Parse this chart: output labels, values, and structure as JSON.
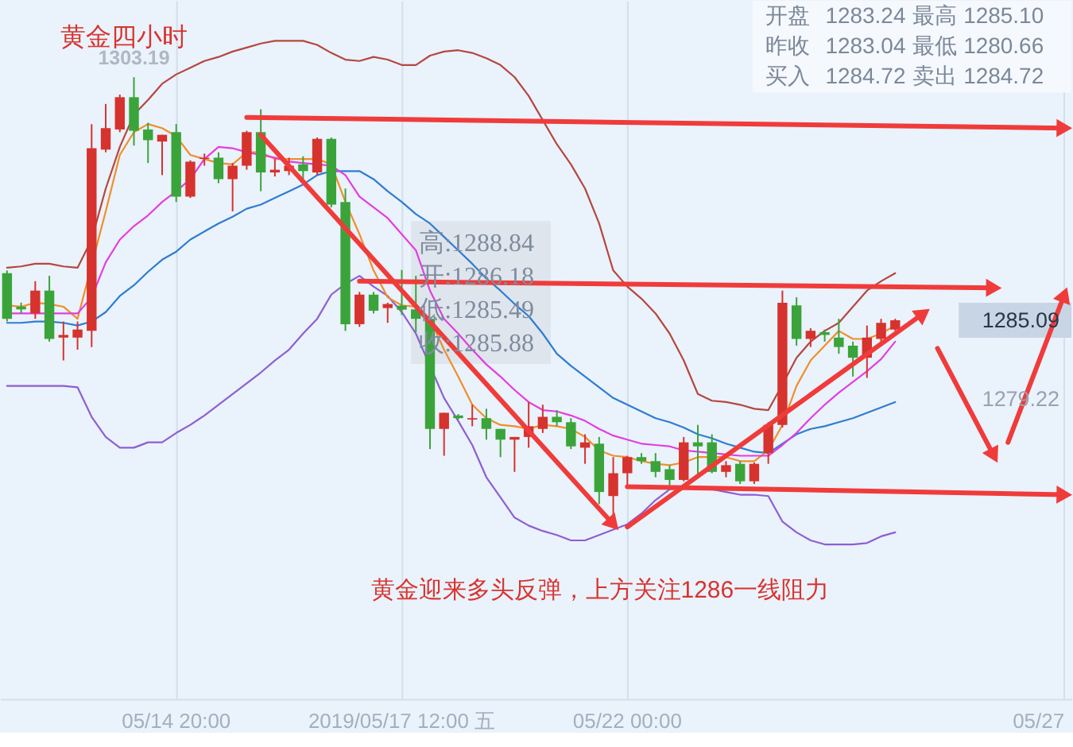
{
  "chart_data": {
    "type": "candlestick",
    "title": "黄金四小时",
    "categories": [
      null,
      null,
      null,
      null,
      null,
      null,
      null,
      null,
      null,
      null,
      null,
      null,
      "05/14 20:00",
      null,
      null,
      null,
      null,
      null,
      null,
      null,
      null,
      null,
      null,
      null,
      null,
      null,
      null,
      null,
      "2019/05/17 12:00 五",
      null,
      null,
      null,
      null,
      null,
      null,
      null,
      null,
      null,
      null,
      null,
      null,
      null,
      null,
      null,
      "05/22 00:00",
      null,
      null,
      null,
      null,
      null,
      null,
      null,
      null,
      null,
      null,
      null,
      null,
      null,
      null,
      null,
      null,
      null,
      null,
      null,
      null,
      null,
      null,
      null,
      null,
      null,
      null,
      null,
      null,
      null,
      null,
      "05/27"
    ],
    "ohlc": [
      [
        1288.6,
        1288.8,
        1285.0,
        1285.2
      ],
      [
        1286.1,
        1286.4,
        1285.6,
        1285.9
      ],
      [
        1285.6,
        1288.0,
        1285.2,
        1287.3
      ],
      [
        1287.3,
        1288.4,
        1283.5,
        1283.7
      ],
      [
        1283.8,
        1285.0,
        1282.1,
        1284.0
      ],
      [
        1283.8,
        1285.0,
        1282.9,
        1284.4
      ],
      [
        1284.3,
        1299.7,
        1283.1,
        1297.9
      ],
      [
        1297.8,
        1301.2,
        1297.6,
        1299.4
      ],
      [
        1299.3,
        1301.9,
        1299.1,
        1301.7
      ],
      [
        1301.7,
        1303.19,
        1298.1,
        1299.2
      ],
      [
        1299.3,
        1299.8,
        1296.8,
        1298.5
      ],
      [
        1298.4,
        1298.9,
        1295.9,
        1298.9
      ],
      [
        1299.1,
        1299.7,
        1293.9,
        1294.3
      ],
      [
        1294.3,
        1297.0,
        1294.2,
        1296.9
      ],
      [
        1297.1,
        1297.5,
        1296.6,
        1297.2
      ],
      [
        1297.2,
        1297.6,
        1295.3,
        1295.6
      ],
      [
        1295.6,
        1296.8,
        1293.2,
        1296.6
      ],
      [
        1296.6,
        1299.2,
        1296.3,
        1299.1
      ],
      [
        1299.1,
        1300.8,
        1294.7,
        1296.1
      ],
      [
        1296.1,
        1297.1,
        1295.8,
        1296.3
      ],
      [
        1296.2,
        1297.2,
        1295.9,
        1296.6
      ],
      [
        1296.7,
        1297.3,
        1295.6,
        1296.2
      ],
      [
        1296.1,
        1298.7,
        1295.9,
        1298.6
      ],
      [
        1298.6,
        1298.7,
        1293.5,
        1293.7
      ],
      [
        1293.9,
        1294.9,
        1284.3,
        1284.8
      ],
      [
        1284.8,
        1287.2,
        1284.6,
        1287.0
      ],
      [
        1287.0,
        1287.2,
        1285.6,
        1285.8
      ],
      [
        1286.0,
        1286.4,
        1284.9,
        1286.3
      ],
      [
        1286.18,
        1288.84,
        1285.49,
        1285.88
      ],
      [
        1285.9,
        1288.4,
        1284.2,
        1285.2
      ],
      [
        1285.2,
        1285.3,
        1275.5,
        1277.0
      ],
      [
        1277.0,
        1278.2,
        1275.0,
        1278.2
      ],
      [
        1278.0,
        1278.1,
        1277.7,
        1277.8
      ],
      [
        1277.7,
        1278.8,
        1277.2,
        1277.8
      ],
      [
        1277.8,
        1278.5,
        1276.2,
        1277.0
      ],
      [
        1277.0,
        1277.0,
        1274.9,
        1276.2
      ],
      [
        1276.2,
        1276.4,
        1273.8,
        1276.4
      ],
      [
        1276.4,
        1279.0,
        1275.6,
        1277.2
      ],
      [
        1277.0,
        1278.8,
        1276.7,
        1277.9
      ],
      [
        1277.9,
        1278.4,
        1277.2,
        1277.5
      ],
      [
        1277.5,
        1277.8,
        1275.5,
        1275.7
      ],
      [
        1275.6,
        1276.6,
        1274.4,
        1276.0
      ],
      [
        1275.9,
        1276.4,
        1271.4,
        1272.3
      ],
      [
        1272.0,
        1274.9,
        1269.7,
        1273.7
      ],
      [
        1273.7,
        1275.0,
        1272.6,
        1274.9
      ],
      [
        1274.9,
        1275.2,
        1274.4,
        1274.6
      ],
      [
        1274.6,
        1275.2,
        1273.4,
        1273.8
      ],
      [
        1274.0,
        1274.3,
        1272.6,
        1273.2
      ],
      [
        1273.2,
        1276.4,
        1273.1,
        1276.0
      ],
      [
        1276.0,
        1277.3,
        1273.4,
        1275.7
      ],
      [
        1276.0,
        1276.6,
        1273.7,
        1273.8
      ],
      [
        1273.8,
        1274.6,
        1273.4,
        1274.3
      ],
      [
        1274.4,
        1274.6,
        1272.9,
        1273.1
      ],
      [
        1273.1,
        1274.5,
        1272.9,
        1274.4
      ],
      [
        1275.2,
        1277.5,
        1274.4,
        1277.3
      ],
      [
        1277.3,
        1287.3,
        1277.1,
        1286.4
      ],
      [
        1286.2,
        1286.8,
        1283.2,
        1283.7
      ],
      [
        1283.7,
        1284.5,
        1283.1,
        1284.3
      ],
      [
        1284.2,
        1284.4,
        1283.5,
        1284.0
      ],
      [
        1283.8,
        1285.2,
        1282.6,
        1283.1
      ],
      [
        1283.2,
        1283.5,
        1280.9,
        1282.3
      ],
      [
        1282.3,
        1284.7,
        1280.8,
        1283.8
      ],
      [
        1283.7,
        1285.2,
        1283.5,
        1284.9
      ],
      [
        1284.4,
        1285.2,
        1284.3,
        1285.09
      ],
      null,
      null,
      null,
      null,
      null,
      null,
      null,
      null,
      null,
      null,
      null,
      null
    ],
    "colors": [
      "#3aa43a",
      "#3aa43a",
      "#d6322e",
      "#3aa43a",
      "#d6322e",
      "#d6322e",
      "#d6322e",
      "#d6322e",
      "#d6322e",
      "#3aa43a",
      "#3aa43a",
      "#d6322e",
      "#3aa43a",
      "#d6322e",
      "#d6322e",
      "#3aa43a",
      "#d6322e",
      "#d6322e",
      "#3aa43a",
      "#d6322e",
      "#d6322e",
      "#3aa43a",
      "#d6322e",
      "#3aa43a",
      "#3aa43a",
      "#d6322e",
      "#3aa43a",
      "#d6322e",
      "#3aa43a",
      "#3aa43a",
      "#3aa43a",
      "#d6322e",
      "#3aa43a",
      "#d6322e",
      "#3aa43a",
      "#3aa43a",
      "#d6322e",
      "#d6322e",
      "#d6322e",
      "#3aa43a",
      "#3aa43a",
      "#d6322e",
      "#3aa43a",
      "#d6322e",
      "#d6322e",
      "#3aa43a",
      "#3aa43a",
      "#3aa43a",
      "#d6322e",
      "#3aa43a",
      "#3aa43a",
      "#d6322e",
      "#3aa43a",
      "#d6322e",
      "#d6322e",
      "#d6322e",
      "#3aa43a",
      "#d6322e",
      "#3aa43a",
      "#3aa43a",
      "#3aa43a",
      "#d6322e",
      "#d6322e",
      "#d6322e",
      null,
      null,
      null,
      null,
      null,
      null,
      null,
      null,
      null,
      null,
      null,
      null
    ],
    "series": [
      {
        "type": "line",
        "color": "#b5473f",
        "values": [
          1289.0,
          1289.1,
          1289.3,
          1289.3,
          1289.1,
          1289.0,
          1291.1,
          1294.9,
          1298.0,
          1300.4,
          1301.5,
          1302.7,
          1303.4,
          1303.9,
          1304.4,
          1304.7,
          1305.1,
          1305.4,
          1305.7,
          1305.9,
          1305.9,
          1305.9,
          1305.6,
          1305.0,
          1304.5,
          1304.4,
          1304.7,
          1304.5,
          1304.1,
          1304.1,
          1304.8,
          1305.1,
          1305.2,
          1305.0,
          1304.6,
          1304.1,
          1303.2,
          1301.8,
          1300.0,
          1298.2,
          1296.7,
          1294.9,
          1292.3,
          1288.8,
          1287.6,
          1286.7,
          1285.6,
          1284.1,
          1282.1,
          1279.6,
          1279.1,
          1279.0,
          1278.8,
          1278.5,
          1278.4,
          1280.3,
          1282.3,
          1283.5,
          1284.3,
          1284.9,
          1286.1,
          1287.3,
          1288.0,
          1288.6,
          null,
          null,
          null,
          null,
          null,
          null,
          null,
          null,
          null,
          null,
          null,
          null
        ]
      },
      {
        "type": "line",
        "color": "#8d5fd3",
        "values": [
          1280.2,
          1280.2,
          1280.2,
          1280.2,
          1280.2,
          1280.1,
          1277.9,
          1276.4,
          1275.6,
          1275.6,
          1276.0,
          1276.0,
          1276.7,
          1277.3,
          1278.0,
          1278.8,
          1279.6,
          1280.4,
          1281.2,
          1282.1,
          1282.9,
          1284.1,
          1285.2,
          1287.0,
          1287.8,
          1288.4,
          1287.6,
          1286.9,
          1285.7,
          1284.1,
          null,
          1279.3,
          1277.6,
          1275.8,
          1273.4,
          1271.9,
          1270.4,
          1269.8,
          1269.4,
          1269.1,
          1268.7,
          1268.7,
          1269.1,
          1269.5,
          1269.9,
          1270.7,
          1271.7,
          1272.5,
          1272.6,
          1272.6,
          1272.5,
          1272.3,
          1272.1,
          1272.1,
          1272.0,
          1270.1,
          1269.3,
          1268.7,
          1268.4,
          1268.4,
          1268.4,
          1268.5,
          1269.0,
          1269.3,
          null,
          null,
          null,
          null,
          null,
          null,
          null,
          null,
          null,
          null,
          null,
          null
        ]
      },
      {
        "type": "line",
        "color": "#2e7dd1",
        "values": [
          1284.9,
          1284.9,
          1285.0,
          1285.0,
          1284.9,
          1284.7,
          1285.0,
          1285.7,
          1286.9,
          1287.7,
          1288.7,
          1289.6,
          1290.2,
          1291.1,
          1291.7,
          1292.3,
          1292.8,
          1293.4,
          1293.7,
          1294.2,
          1294.7,
          1295.2,
          1295.9,
          1296.2,
          1296.2,
          1296.2,
          1295.6,
          1294.7,
          1293.9,
          1293.0,
          1292.3,
          1291.3,
          1290.3,
          1289.3,
          1288.2,
          1287.3,
          1286.3,
          1285.4,
          1284.1,
          1282.6,
          1281.7,
          1280.9,
          1280.1,
          1279.3,
          1278.8,
          1278.3,
          1277.8,
          1277.5,
          1277.1,
          1276.6,
          1276.3,
          1275.9,
          1275.6,
          1275.3,
          1275.2,
          1275.9,
          1276.6,
          1277.0,
          1277.2,
          1277.5,
          1277.8,
          1278.2,
          1278.6,
          1279.0,
          null,
          null,
          null,
          null,
          null,
          null,
          null,
          null,
          null,
          null,
          null,
          null
        ]
      },
      {
        "type": "line",
        "color": "#ef8f2a",
        "values": [
          1286.2,
          1286.1,
          1286.4,
          1286.3,
          1286.1,
          1285.2,
          null,
          1293.2,
          1297.4,
          1299.1,
          1299.7,
          1299.4,
          1298.8,
          1297.4,
          1297.1,
          1296.8,
          1296.7,
          1297.6,
          1297.6,
          1297.1,
          1297.1,
          1297.1,
          1297.1,
          1296.7,
          1293.9,
          1291.5,
          1288.8,
          1286.8,
          1286.2,
          1286.1,
          1285.2,
          1282.9,
          1280.9,
          1278.8,
          1277.8,
          1277.3,
          1277.2,
          1277.0,
          1277.3,
          1277.2,
          1277.0,
          1276.4,
          1275.4,
          1275.0,
          1274.9,
          1274.6,
          1274.4,
          1274.3,
          1274.5,
          1274.9,
          1274.9,
          1274.9,
          1274.6,
          1274.6,
          1275.4,
          1277.3,
          1280.2,
          1282.1,
          1283.2,
          1284.3,
          1283.7,
          1283.7,
          1284.1,
          1284.7,
          null,
          null,
          null,
          null,
          null,
          null,
          null,
          null,
          null,
          null,
          null,
          null
        ]
      },
      {
        "type": "line",
        "color": "#e23ee0",
        "values": [
          1285.6,
          1285.6,
          1285.6,
          1285.6,
          1285.6,
          1285.6,
          1286.8,
          1289.4,
          1291.1,
          1292.1,
          1292.9,
          1293.9,
          1294.7,
          1295.6,
          1297.1,
          1298.0,
          1297.9,
          1297.6,
          1297.4,
          1297.2,
          1296.9,
          1296.8,
          1296.7,
          1296.6,
          1295.9,
          1294.3,
          1293.5,
          1292.7,
          1291.5,
          1290.3,
          1287.3,
          1285.2,
          1284.1,
          1282.9,
          1281.8,
          1280.9,
          1279.9,
          1279.0,
          1278.4,
          1278.3,
          1278.0,
          1277.6,
          1277.0,
          1276.5,
          1276.2,
          1275.9,
          1275.8,
          1275.7,
          1275.4,
          1275.3,
          1275.2,
          1275.1,
          1275.0,
          1275.0,
          1275.0,
          1275.8,
          1276.7,
          1277.8,
          1278.8,
          1279.7,
          1280.5,
          1281.3,
          1282.2,
          1283.5,
          null,
          null,
          null,
          null,
          null,
          null,
          null,
          null,
          null,
          null,
          null,
          null
        ]
      },
      {
        "type": "line",
        "color": "#f03b3b",
        "marker": "triangle",
        "values": [
          null,
          null,
          null,
          null,
          null,
          null,
          null,
          null,
          null,
          null,
          null,
          null,
          null,
          null,
          null,
          null,
          null,
          1300.2,
          null,
          null,
          null,
          null,
          null,
          null,
          null,
          null,
          null,
          null,
          null,
          null,
          null,
          null,
          null,
          null,
          null,
          null,
          null,
          null,
          null,
          null,
          null,
          null,
          null,
          null,
          null,
          null,
          null,
          null,
          null,
          null,
          null,
          null,
          null,
          null,
          null,
          null,
          null,
          null,
          null,
          null,
          null,
          null,
          null,
          null,
          null,
          null,
          null,
          null,
          null,
          null,
          null,
          null,
          null,
          null,
          null,
          1299.4
        ]
      },
      {
        "type": "line",
        "color": "#f03b3b",
        "marker": "triangle",
        "values": [
          null,
          null,
          null,
          null,
          null,
          null,
          null,
          null,
          null,
          null,
          null,
          null,
          null,
          null,
          null,
          null,
          null,
          null,
          null,
          null,
          null,
          null,
          null,
          null,
          null,
          1288.0,
          null,
          null,
          null,
          null,
          null,
          null,
          null,
          null,
          null,
          null,
          null,
          null,
          null,
          null,
          null,
          null,
          null,
          null,
          null,
          null,
          null,
          null,
          null,
          null,
          null,
          null,
          null,
          null,
          null,
          null,
          null,
          null,
          null,
          null,
          null,
          null,
          null,
          null,
          null,
          null,
          null,
          null,
          null,
          null,
          1287.5,
          null,
          null,
          null,
          null,
          null
        ]
      },
      {
        "type": "line",
        "color": "#f03b3b",
        "marker": "triangle",
        "values": [
          null,
          null,
          null,
          null,
          null,
          null,
          null,
          null,
          null,
          null,
          null,
          null,
          null,
          null,
          null,
          null,
          null,
          null,
          null,
          null,
          null,
          null,
          null,
          null,
          null,
          null,
          null,
          null,
          null,
          null,
          null,
          null,
          null,
          null,
          null,
          null,
          null,
          null,
          null,
          null,
          null,
          null,
          null,
          null,
          1272.7,
          null,
          null,
          null,
          null,
          null,
          null,
          null,
          null,
          null,
          null,
          null,
          null,
          null,
          null,
          null,
          null,
          null,
          null,
          null,
          null,
          null,
          null,
          null,
          null,
          null,
          null,
          null,
          null,
          null,
          null,
          1272.1
        ]
      },
      {
        "type": "line",
        "color": "#f03b3b",
        "marker": "triangle",
        "values": [
          null,
          null,
          null,
          null,
          null,
          null,
          null,
          null,
          null,
          null,
          null,
          null,
          null,
          null,
          null,
          null,
          null,
          null,
          1298.9,
          null,
          null,
          null,
          null,
          null,
          null,
          null,
          null,
          null,
          null,
          null,
          null,
          null,
          null,
          null,
          null,
          null,
          null,
          null,
          null,
          null,
          null,
          null,
          null,
          1269.9,
          null,
          null,
          null,
          null,
          null,
          null,
          null,
          null,
          null,
          null,
          null,
          null,
          null,
          null,
          null,
          null,
          null,
          null,
          null,
          null,
          null,
          null,
          null,
          null,
          null,
          null,
          null,
          null,
          null,
          null,
          null,
          null
        ]
      },
      {
        "type": "line",
        "color": "#f03b3b",
        "marker": "triangle",
        "values": [
          null,
          null,
          null,
          null,
          null,
          null,
          null,
          null,
          null,
          null,
          null,
          null,
          null,
          null,
          null,
          null,
          null,
          null,
          null,
          null,
          null,
          null,
          null,
          null,
          null,
          null,
          null,
          null,
          null,
          null,
          null,
          null,
          null,
          null,
          null,
          null,
          null,
          null,
          null,
          null,
          null,
          null,
          null,
          null,
          1269.7,
          null,
          null,
          null,
          null,
          null,
          null,
          null,
          null,
          null,
          null,
          null,
          null,
          null,
          null,
          null,
          null,
          null,
          null,
          null,
          null,
          1285.6,
          null,
          null,
          null,
          null,
          null,
          null,
          null,
          null,
          null,
          null
        ]
      },
      {
        "type": "line",
        "color": "#f03b3b",
        "marker": "triangle",
        "values": [
          null,
          null,
          null,
          null,
          null,
          null,
          null,
          null,
          null,
          null,
          null,
          null,
          null,
          null,
          null,
          null,
          null,
          null,
          null,
          null,
          null,
          null,
          null,
          null,
          null,
          null,
          null,
          null,
          null,
          null,
          null,
          null,
          null,
          null,
          null,
          null,
          null,
          null,
          null,
          null,
          null,
          null,
          null,
          null,
          null,
          null,
          null,
          null,
          null,
          null,
          null,
          null,
          null,
          null,
          null,
          null,
          null,
          null,
          null,
          null,
          null,
          null,
          null,
          null,
          null,
          null,
          1283.0,
          null,
          null,
          null,
          1275.0,
          null,
          null,
          null,
          null,
          null
        ]
      },
      {
        "type": "line",
        "color": "#f03b3b",
        "marker": "triangle",
        "values": [
          null,
          null,
          null,
          null,
          null,
          null,
          null,
          null,
          null,
          null,
          null,
          null,
          null,
          null,
          null,
          null,
          null,
          null,
          null,
          null,
          null,
          null,
          null,
          null,
          null,
          null,
          null,
          null,
          null,
          null,
          null,
          null,
          null,
          null,
          null,
          null,
          null,
          null,
          null,
          null,
          null,
          null,
          null,
          null,
          null,
          null,
          null,
          null,
          null,
          null,
          null,
          null,
          null,
          null,
          null,
          null,
          null,
          null,
          null,
          null,
          null,
          null,
          null,
          null,
          null,
          null,
          null,
          null,
          null,
          null,
          null,
          1276.0,
          null,
          null,
          null,
          1287.0
        ]
      }
    ],
    "ylim": [
      1256.9,
      1308.9
    ],
    "yticks": [
      1279.22,
      1285.09
    ],
    "grid": "x",
    "annotations": [
      "开盘",
      "1283.24",
      "最高",
      "1285.10",
      "昨收",
      "1283.04",
      "最低",
      "1280.66",
      "买入",
      "1284.72",
      "卖出",
      "1284.72",
      "高:1288.84",
      "开:1286.18",
      "低:1285.49",
      "收:1285.88",
      "黄金迎来多头反弹，上方关注1286一线阻力",
      {
        "text": "1303.19",
        "y": 1303.19
      }
    ]
  }
}
